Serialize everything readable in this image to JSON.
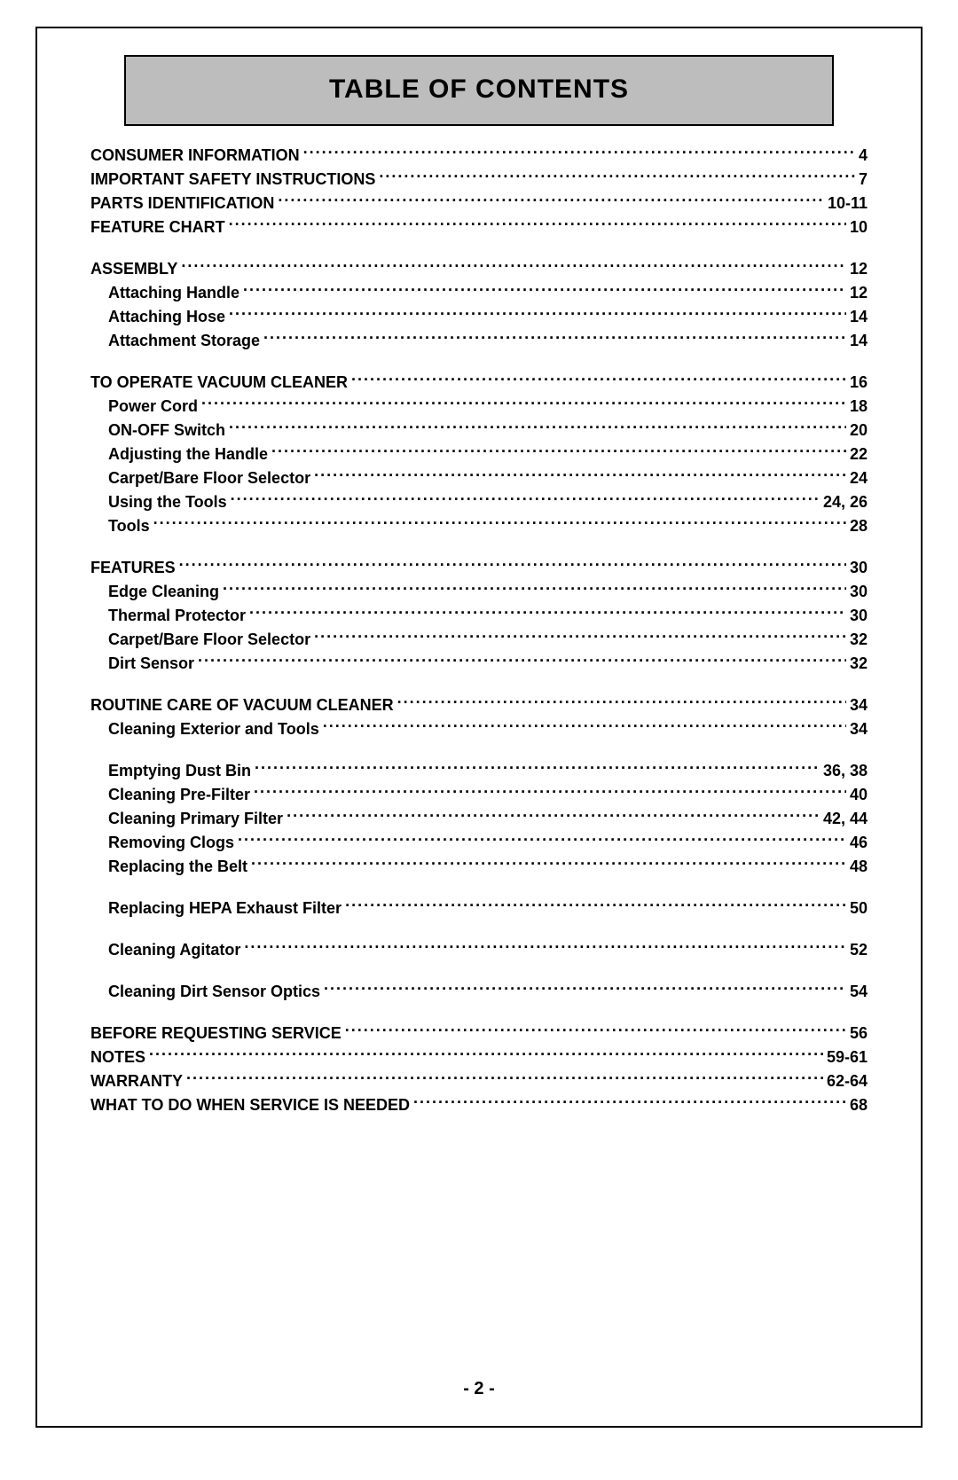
{
  "title": "TABLE OF CONTENTS",
  "page_number": "- 2 -",
  "colors": {
    "title_bg": "#bdbdbd",
    "border": "#000000",
    "text": "#000000",
    "page_bg": "#ffffff"
  },
  "typography": {
    "title_fontsize_pt": 22,
    "entry_fontsize_pt": 13,
    "font_family": "Arial"
  },
  "sections": [
    {
      "entries": [
        {
          "label": "CONSUMER INFORMATION",
          "page": "4",
          "level": "top"
        },
        {
          "label": "IMPORTANT SAFETY INSTRUCTIONS",
          "page": "7",
          "level": "top"
        },
        {
          "label": "PARTS IDENTIFICATION",
          "page": "10-11",
          "level": "top"
        },
        {
          "label": "FEATURE CHART",
          "page": "10",
          "level": "top"
        }
      ]
    },
    {
      "entries": [
        {
          "label": "ASSEMBLY",
          "page": "12",
          "level": "top"
        },
        {
          "label": "Attaching Handle",
          "page": "12",
          "level": "sub"
        },
        {
          "label": "Attaching Hose",
          "page": "14",
          "level": "sub"
        },
        {
          "label": "Attachment Storage",
          "page": "14",
          "level": "sub"
        }
      ]
    },
    {
      "entries": [
        {
          "label": "TO OPERATE VACUUM CLEANER",
          "page": "16",
          "level": "top"
        },
        {
          "label": "Power Cord",
          "page": "18",
          "level": "sub"
        },
        {
          "label": "ON-OFF Switch",
          "page": "20",
          "level": "sub"
        },
        {
          "label": "Adjusting the Handle",
          "page": "22",
          "level": "sub"
        },
        {
          "label": "Carpet/Bare Floor Selector",
          "page": "24",
          "level": "sub"
        },
        {
          "label": "Using the Tools",
          "page": "24, 26",
          "level": "sub"
        },
        {
          "label": "Tools",
          "page": "28",
          "level": "sub"
        }
      ]
    },
    {
      "entries": [
        {
          "label": "FEATURES",
          "page": "30",
          "level": "top"
        },
        {
          "label": "Edge Cleaning",
          "page": "30",
          "level": "sub"
        },
        {
          "label": "Thermal Protector",
          "page": "30",
          "level": "sub"
        },
        {
          "label": "Carpet/Bare Floor Selector",
          "page": "32",
          "level": "sub"
        },
        {
          "label": "Dirt Sensor",
          "page": "32",
          "level": "sub"
        }
      ]
    },
    {
      "entries": [
        {
          "label": "ROUTINE CARE OF VACUUM CLEANER",
          "page": "34",
          "level": "top"
        },
        {
          "label": "Cleaning Exterior and Tools",
          "page": "34",
          "level": "sub"
        },
        {
          "gap": true
        },
        {
          "label": "Emptying Dust Bin",
          "page": "36, 38",
          "level": "sub"
        },
        {
          "label": "Cleaning Pre-Filter",
          "page": "40",
          "level": "sub"
        },
        {
          "label": "Cleaning Primary Filter",
          "page": "42, 44",
          "level": "sub"
        },
        {
          "label": "Removing Clogs",
          "page": "46",
          "level": "sub"
        },
        {
          "label": "Replacing the Belt",
          "page": "48",
          "level": "sub"
        },
        {
          "gap": true
        },
        {
          "label": "Replacing HEPA Exhaust Filter",
          "page": "50",
          "level": "sub"
        },
        {
          "gap": true
        },
        {
          "label": "Cleaning Agitator",
          "page": "52",
          "level": "sub"
        },
        {
          "gap": true
        },
        {
          "label": "Cleaning Dirt Sensor Optics",
          "page": "54",
          "level": "sub"
        }
      ]
    },
    {
      "entries": [
        {
          "label": "BEFORE REQUESTING SERVICE",
          "page": "56",
          "level": "top"
        },
        {
          "label": "NOTES",
          "page": "59-61",
          "level": "top"
        },
        {
          "label": "WARRANTY",
          "page": "62-64",
          "level": "top"
        },
        {
          "label": "WHAT TO DO WHEN SERVICE IS NEEDED",
          "page": "68",
          "level": "top"
        }
      ]
    }
  ]
}
